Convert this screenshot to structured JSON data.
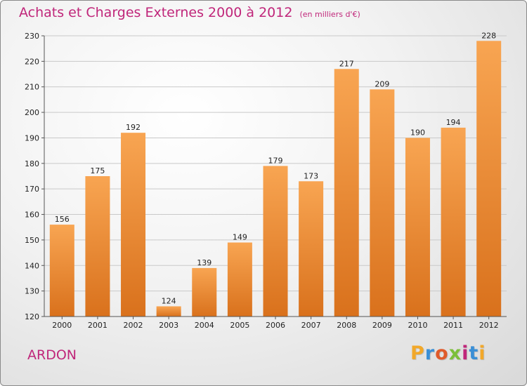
{
  "header": {
    "title": "Achats et Charges Externes 2000 à 2012",
    "subtitle": "(en milliers d'€)"
  },
  "footer": {
    "place": "ARDON",
    "brand": "Proxiti",
    "brand_colors": [
      "#f2a82a",
      "#3a8fd6",
      "#e05a2a",
      "#7cbf3a",
      "#c0267a",
      "#3a8fd6",
      "#f2a82a"
    ]
  },
  "colors": {
    "title": "#c0267a",
    "bar_top": "#f8a552",
    "bar_bottom": "#d9711c",
    "grid": "#c9c9c9"
  },
  "chart_data": {
    "type": "bar",
    "title": "Achats et Charges Externes 2000 à 2012",
    "subtitle": "(en milliers d'€)",
    "categories": [
      "2000",
      "2001",
      "2002",
      "2003",
      "2004",
      "2005",
      "2006",
      "2007",
      "2008",
      "2009",
      "2010",
      "2011",
      "2012"
    ],
    "values": [
      156,
      175,
      192,
      124,
      139,
      149,
      179,
      173,
      217,
      209,
      190,
      194,
      228
    ],
    "ylim": [
      120,
      230
    ],
    "yticks": [
      120,
      130,
      140,
      150,
      160,
      170,
      180,
      190,
      200,
      210,
      220,
      230
    ],
    "grid": true,
    "data_labels": true
  }
}
